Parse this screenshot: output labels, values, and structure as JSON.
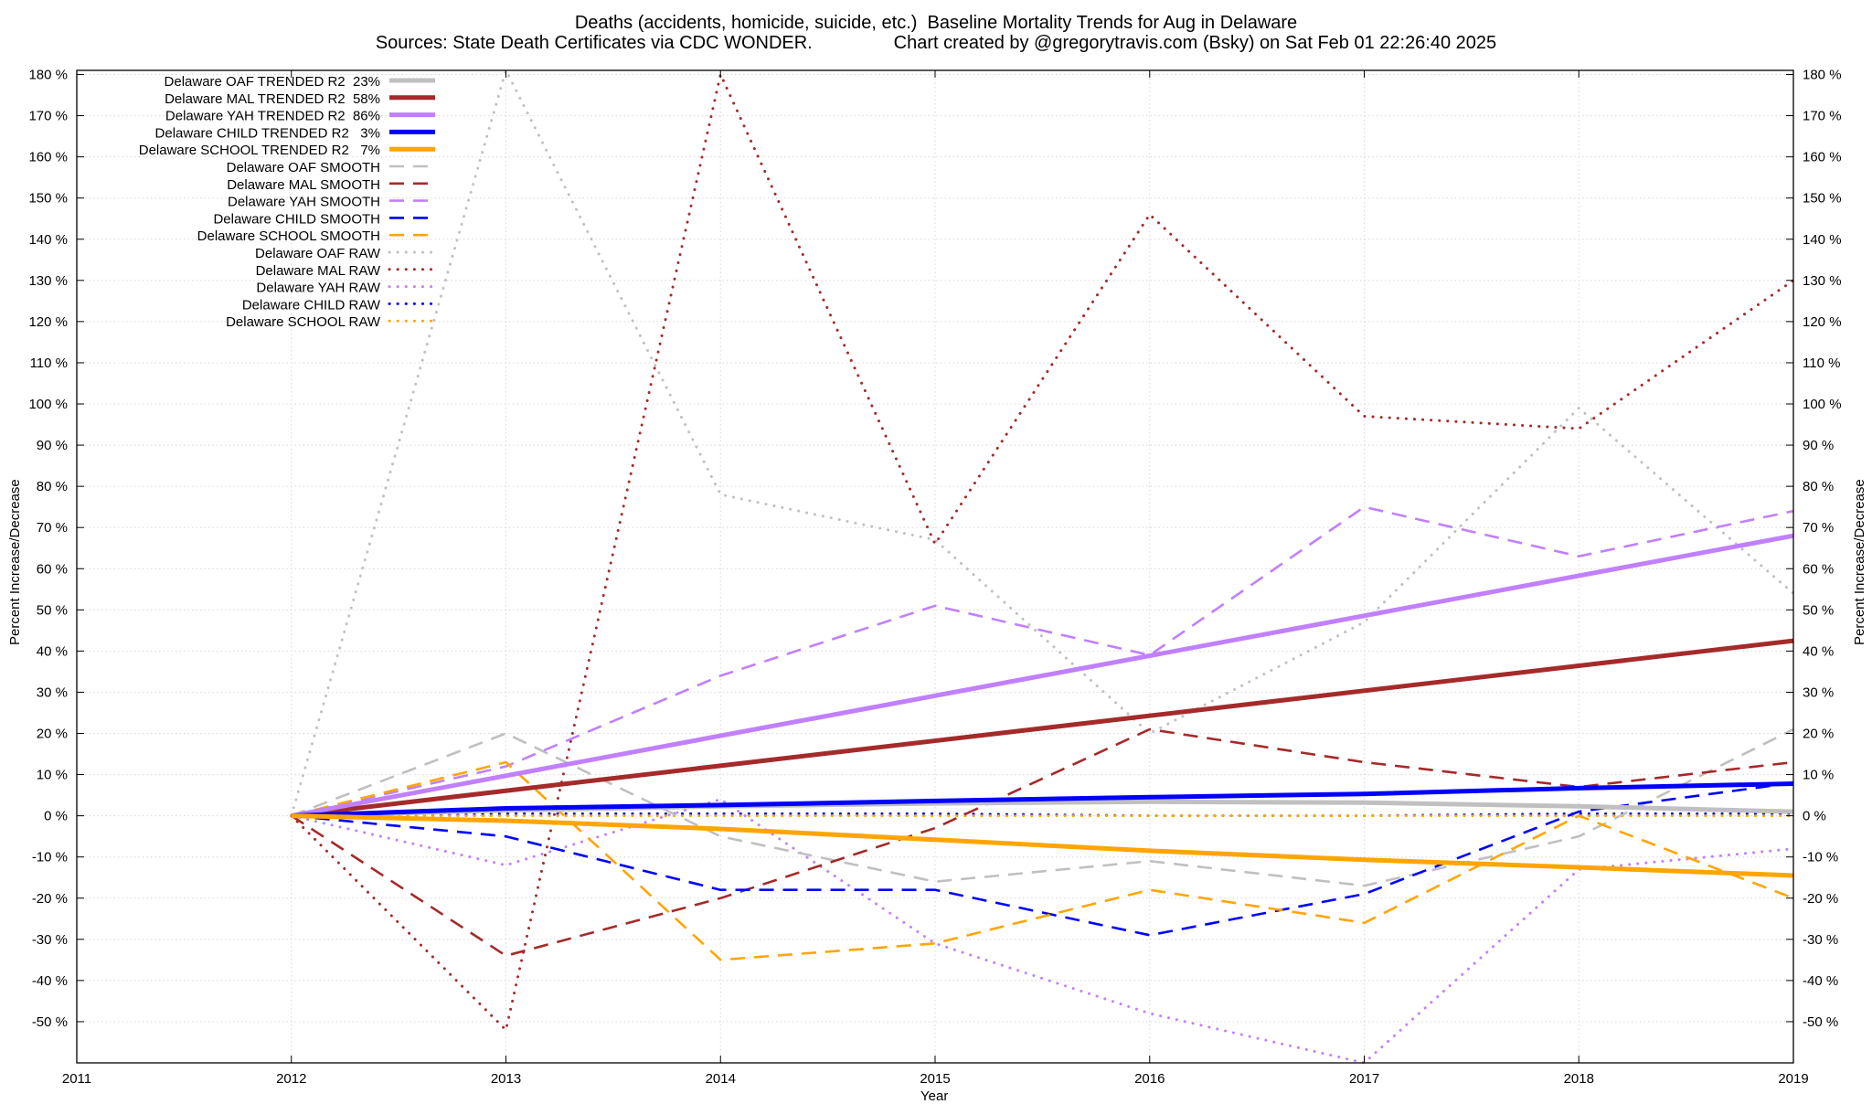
{
  "chart_data": {
    "type": "line",
    "title_line1": "Deaths (accidents, homicide, suicide, etc.)  Baseline Mortality Trends for Aug in Delaware",
    "title_line2": "Sources: State Death Certificates via CDC WONDER.                Chart created by @gregorytravis.com (Bsky) on Sat Feb 01 22:26:40 2025",
    "xlabel": "Year",
    "ylabel": "Percent Increase/Decrease",
    "y2label": "Percent Increase/Decrease",
    "xlim": [
      2011,
      2019
    ],
    "ylim": [
      -60,
      181
    ],
    "x_ticks": [
      2011,
      2012,
      2013,
      2014,
      2015,
      2016,
      2017,
      2018,
      2019
    ],
    "y_ticks": [
      -50,
      -40,
      -30,
      -20,
      -10,
      0,
      10,
      20,
      30,
      40,
      50,
      60,
      70,
      80,
      90,
      100,
      110,
      120,
      130,
      140,
      150,
      160,
      170,
      180
    ],
    "y_tick_suffix": " %",
    "grid": true,
    "legend_position": "top-left",
    "series": [
      {
        "name": "Delaware OAF TRENDED R2  23%",
        "color": "#c0c0c0",
        "style": "solid",
        "x": [
          2012,
          2013,
          2014,
          2015,
          2016,
          2017,
          2018,
          2019
        ],
        "values": [
          0,
          1.3,
          2.3,
          3,
          3.4,
          3.2,
          2.3,
          1
        ]
      },
      {
        "name": "Delaware MAL TRENDED R2  58%",
        "color": "#a52a2a",
        "style": "solid",
        "x": [
          2012,
          2019
        ],
        "values": [
          0,
          42.5
        ]
      },
      {
        "name": "Delaware YAH TRENDED R2  86%",
        "color": "#c080ff",
        "style": "solid",
        "x": [
          2012,
          2019
        ],
        "values": [
          0,
          68
        ]
      },
      {
        "name": "Delaware CHILD TRENDED R2   3%",
        "color": "#0000ff",
        "style": "solid",
        "x": [
          2012,
          2013,
          2014,
          2015,
          2016,
          2017,
          2018,
          2019
        ],
        "values": [
          0,
          1.8,
          2.6,
          3.6,
          4.5,
          5.3,
          6.7,
          7.8
        ]
      },
      {
        "name": "Delaware SCHOOL TRENDED R2   7%",
        "color": "#ffa500",
        "style": "solid",
        "x": [
          2012,
          2013,
          2014,
          2015,
          2016,
          2017,
          2018,
          2019
        ],
        "values": [
          0,
          -1.2,
          -3.2,
          -5.8,
          -8.5,
          -10.7,
          -12.5,
          -14.5
        ]
      },
      {
        "name": "Delaware OAF SMOOTH",
        "color": "#c0c0c0",
        "style": "dashed",
        "x": [
          2012,
          2013,
          2014,
          2015,
          2016,
          2017,
          2018,
          2019
        ],
        "values": [
          0,
          20,
          -5,
          -16,
          -11,
          -17,
          -5,
          21
        ]
      },
      {
        "name": "Delaware MAL SMOOTH",
        "color": "#a52a2a",
        "style": "dashed",
        "x": [
          2012,
          2013,
          2014,
          2015,
          2016,
          2017,
          2018,
          2019
        ],
        "values": [
          0,
          -34,
          -20,
          -3,
          21,
          13,
          7,
          13
        ]
      },
      {
        "name": "Delaware YAH SMOOTH",
        "color": "#c080ff",
        "style": "dashed",
        "x": [
          2012,
          2013,
          2014,
          2015,
          2016,
          2017,
          2018,
          2019
        ],
        "values": [
          0,
          12,
          34,
          51,
          39,
          75,
          63,
          74
        ]
      },
      {
        "name": "Delaware CHILD SMOOTH",
        "color": "#0000ff",
        "style": "dashed",
        "x": [
          2012,
          2013,
          2014,
          2015,
          2016,
          2017,
          2018,
          2019
        ],
        "values": [
          0,
          -5,
          -18,
          -18,
          -29,
          -19,
          1,
          8
        ]
      },
      {
        "name": "Delaware SCHOOL SMOOTH",
        "color": "#ffa500",
        "style": "dashed",
        "x": [
          2012,
          2013,
          2014,
          2015,
          2016,
          2017,
          2018,
          2019
        ],
        "values": [
          0,
          13,
          -35,
          -31,
          -18,
          -26,
          0,
          -20
        ]
      },
      {
        "name": "Delaware OAF RAW",
        "color": "#c0c0c0",
        "style": "dotted",
        "x": [
          2012,
          2013,
          2014,
          2015,
          2016,
          2017,
          2018,
          2019
        ],
        "values": [
          0,
          181,
          78,
          67,
          20,
          47,
          99,
          54
        ]
      },
      {
        "name": "Delaware MAL RAW",
        "color": "#a52a2a",
        "style": "dotted",
        "x": [
          2012,
          2013,
          2014,
          2015,
          2016,
          2017,
          2018,
          2019
        ],
        "values": [
          0,
          -52,
          180,
          66,
          146,
          97,
          94,
          130
        ]
      },
      {
        "name": "Delaware YAH RAW",
        "color": "#c080ff",
        "style": "dotted",
        "x": [
          2012,
          2013,
          2014,
          2015,
          2016,
          2017,
          2018,
          2019
        ],
        "values": [
          0,
          -12,
          4,
          -31,
          -48,
          -60,
          -13,
          -8
        ]
      },
      {
        "name": "Delaware CHILD RAW",
        "color": "#0000ff",
        "style": "dotted",
        "x": [
          2012,
          2013,
          2014,
          2015,
          2016,
          2017,
          2018,
          2019
        ],
        "values": [
          0,
          0.5,
          0.5,
          0.5,
          0,
          0,
          0.5,
          0.5
        ]
      },
      {
        "name": "Delaware SCHOOL RAW",
        "color": "#ffa500",
        "style": "dotted",
        "x": [
          2012,
          2013,
          2014,
          2015,
          2016,
          2017,
          2018,
          2019
        ],
        "values": [
          0,
          0,
          0,
          0,
          0,
          0,
          0,
          0
        ]
      }
    ]
  }
}
